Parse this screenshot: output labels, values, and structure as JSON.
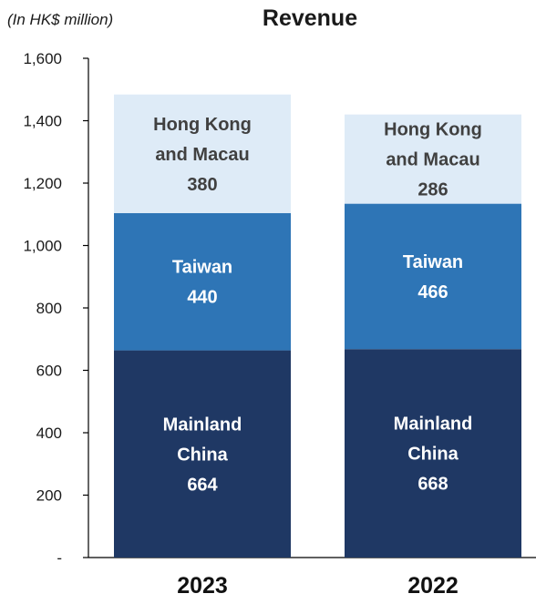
{
  "chart_data": {
    "type": "bar",
    "stacked": true,
    "title": "Revenue",
    "unit_note": "(In HK$ million)",
    "categories": [
      "2023",
      "2022"
    ],
    "series": [
      {
        "name": "Mainland China",
        "label_lines": [
          "Mainland",
          "China"
        ],
        "values": [
          664,
          668
        ],
        "color": "#1f3864",
        "text_color": "#ffffff"
      },
      {
        "name": "Taiwan",
        "label_lines": [
          "Taiwan"
        ],
        "values": [
          440,
          466
        ],
        "color": "#2e75b6",
        "text_color": "#ffffff"
      },
      {
        "name": "Hong Kong and Macau",
        "label_lines": [
          "Hong Kong",
          "and Macau"
        ],
        "values": [
          380,
          286
        ],
        "color": "#deebf7",
        "text_color": "#404040"
      }
    ],
    "ylim": [
      0,
      1600
    ],
    "yticks": [
      0,
      200,
      400,
      600,
      800,
      1000,
      1200,
      1400,
      1600
    ],
    "ytick_labels": [
      "-",
      "200",
      "400",
      "600",
      "800",
      "1,000",
      "1,200",
      "1,400",
      "1,600"
    ],
    "xlabel": "",
    "ylabel": "",
    "grid": false,
    "legend": "none"
  }
}
